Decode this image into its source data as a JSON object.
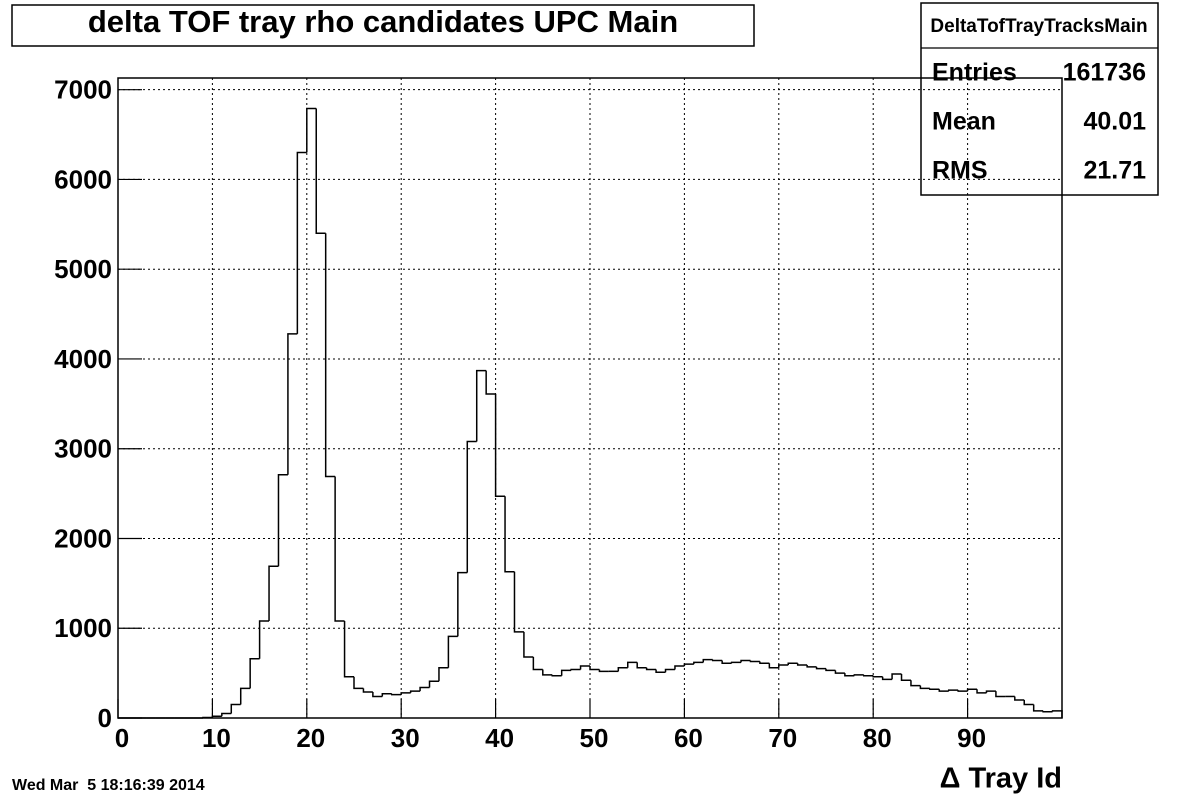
{
  "chart_data": {
    "type": "histogram",
    "title": "delta TOF tray rho candidates UPC Main",
    "x_label": "Δ Tray Id",
    "timestamp": "Wed Mar  5 18:16:39 2014",
    "bins": [
      0,
      1,
      2,
      3,
      4,
      5,
      6,
      7,
      8,
      9,
      10,
      11,
      12,
      13,
      14,
      15,
      16,
      17,
      18,
      19,
      20,
      21,
      22,
      23,
      24,
      25,
      26,
      27,
      28,
      29,
      30,
      31,
      32,
      33,
      34,
      35,
      36,
      37,
      38,
      39,
      40,
      41,
      42,
      43,
      44,
      45,
      46,
      47,
      48,
      49,
      50,
      51,
      52,
      53,
      54,
      55,
      56,
      57,
      58,
      59,
      60,
      61,
      62,
      63,
      64,
      65,
      66,
      67,
      68,
      69,
      70,
      71,
      72,
      73,
      74,
      75,
      76,
      77,
      78,
      79,
      80,
      81,
      82,
      83,
      84,
      85,
      86,
      87,
      88,
      89,
      90,
      91,
      92,
      93,
      94,
      95,
      96,
      97,
      98,
      99,
      100
    ],
    "values": [
      0,
      0,
      0,
      0,
      0,
      0,
      0,
      0,
      0,
      5,
      20,
      50,
      150,
      330,
      660,
      1080,
      1690,
      2710,
      4280,
      6300,
      6790,
      5400,
      2690,
      1080,
      460,
      330,
      290,
      240,
      270,
      260,
      280,
      300,
      340,
      410,
      560,
      910,
      1620,
      3080,
      3870,
      3610,
      2470,
      1630,
      960,
      680,
      540,
      480,
      470,
      530,
      540,
      580,
      540,
      520,
      520,
      560,
      620,
      560,
      540,
      510,
      540,
      580,
      600,
      620,
      650,
      640,
      610,
      620,
      640,
      630,
      610,
      560,
      590,
      610,
      590,
      570,
      550,
      530,
      500,
      470,
      480,
      470,
      460,
      430,
      490,
      420,
      360,
      330,
      320,
      300,
      310,
      300,
      320,
      280,
      300,
      240,
      240,
      200,
      150,
      80,
      70,
      80
    ],
    "color": "#000000",
    "xlim": [
      0,
      100
    ],
    "ylim": [
      0,
      7130
    ],
    "xticks": [
      0,
      10,
      20,
      30,
      40,
      50,
      60,
      70,
      80,
      90
    ],
    "yticks": [
      0,
      1000,
      2000,
      3000,
      4000,
      5000,
      6000,
      7000
    ],
    "grid": true,
    "stats": {
      "name": "DeltaTofTrayTracksMain",
      "rows": [
        {
          "label": "Entries",
          "value": 161736
        },
        {
          "label": "Mean",
          "value": 40.01
        },
        {
          "label": "RMS",
          "value": 21.71
        }
      ]
    }
  }
}
